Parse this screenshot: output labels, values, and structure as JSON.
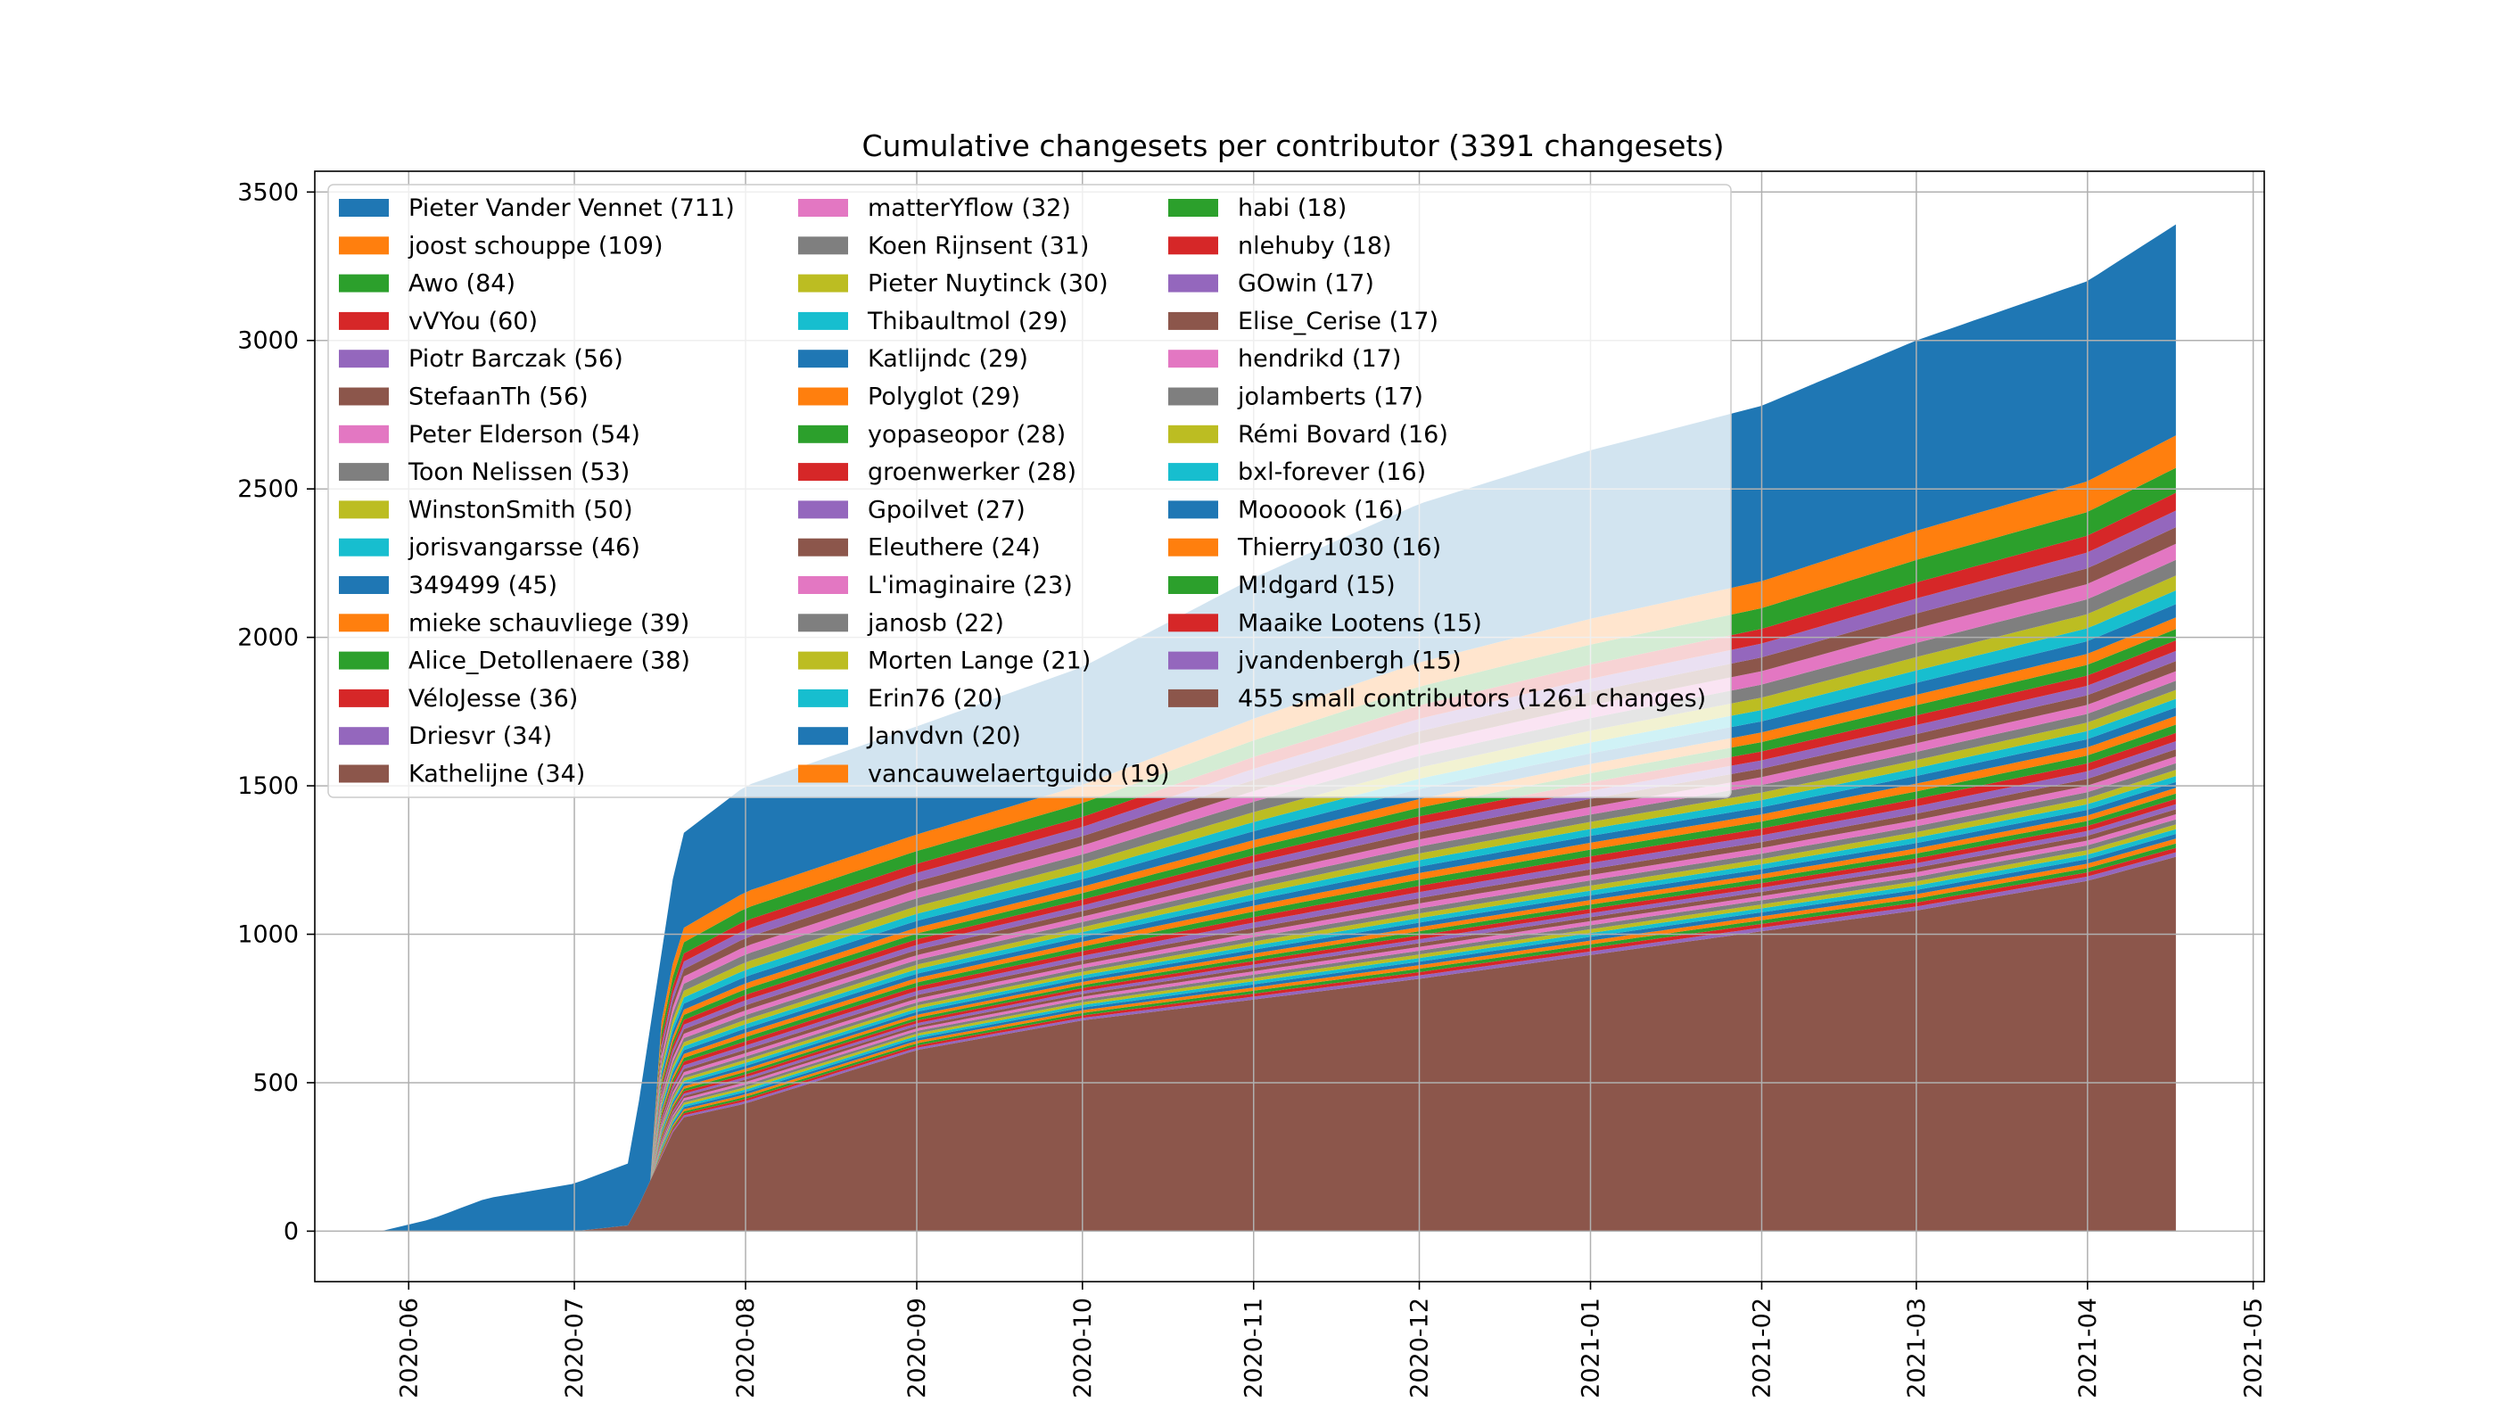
{
  "chart_data": {
    "type": "area",
    "stacked": true,
    "title": "Cumulative changesets per contributor (3391 changesets)",
    "xlabel": "",
    "ylabel": "",
    "x_ticks": [
      "2020-06",
      "2020-07",
      "2020-08",
      "2020-09",
      "2020-10",
      "2020-11",
      "2020-12",
      "2021-01",
      "2021-02",
      "2021-03",
      "2021-04",
      "2021-05"
    ],
    "x_range": [
      "2020-05-15",
      "2021-05-03"
    ],
    "y_ticks": [
      0,
      500,
      1000,
      1500,
      2000,
      2500,
      3000,
      3500
    ],
    "ylim": [
      -170,
      3570
    ],
    "grid": true,
    "legend_position": "top-left",
    "legend_columns": 3,
    "dates": [
      "2020-05-27",
      "2020-06-05",
      "2020-06-15",
      "2020-07-01",
      "2020-07-11",
      "2020-07-20",
      "2020-08-01",
      "2020-09-01",
      "2020-10-01",
      "2020-11-01",
      "2020-12-01",
      "2021-01-01",
      "2021-02-01",
      "2021-03-01",
      "2021-04-01",
      "2021-04-17"
    ],
    "totals": [
      0,
      40,
      110,
      160,
      230,
      1330,
      1500,
      1700,
      1900,
      2200,
      2450,
      2630,
      2780,
      3000,
      3200,
      3391
    ],
    "small_contributors_series": [
      0,
      0,
      0,
      0,
      20,
      380,
      430,
      610,
      710,
      780,
      850,
      930,
      1010,
      1080,
      1180,
      1261
    ],
    "series": [
      {
        "name": "Pieter Vander Vennet (711)",
        "final": 711
      },
      {
        "name": "joost schouppe (109)",
        "final": 109
      },
      {
        "name": "Awo (84)",
        "final": 84
      },
      {
        "name": "vVYou (60)",
        "final": 60
      },
      {
        "name": "Piotr Barczak (56)",
        "final": 56
      },
      {
        "name": "StefaanTh (56)",
        "final": 56
      },
      {
        "name": "Peter Elderson (54)",
        "final": 54
      },
      {
        "name": "Toon Nelissen (53)",
        "final": 53
      },
      {
        "name": "WinstonSmith (50)",
        "final": 50
      },
      {
        "name": "jorisvangarsse (46)",
        "final": 46
      },
      {
        "name": "349499 (45)",
        "final": 45
      },
      {
        "name": "mieke schauvliege (39)",
        "final": 39
      },
      {
        "name": "Alice_Detollenaere (38)",
        "final": 38
      },
      {
        "name": "VéloJesse (36)",
        "final": 36
      },
      {
        "name": "Driesvr (34)",
        "final": 34
      },
      {
        "name": "Kathelijne (34)",
        "final": 34
      },
      {
        "name": "matterYflow (32)",
        "final": 32
      },
      {
        "name": "Koen Rijnsent (31)",
        "final": 31
      },
      {
        "name": "Pieter Nuytinck (30)",
        "final": 30
      },
      {
        "name": "Thibaultmol (29)",
        "final": 29
      },
      {
        "name": "Katlijndc (29)",
        "final": 29
      },
      {
        "name": "Polyglot (29)",
        "final": 29
      },
      {
        "name": "yopaseopor (28)",
        "final": 28
      },
      {
        "name": "groenwerker (28)",
        "final": 28
      },
      {
        "name": "Gpoilvet (27)",
        "final": 27
      },
      {
        "name": "Eleuthere (24)",
        "final": 24
      },
      {
        "name": "L'imaginaire (23)",
        "final": 23
      },
      {
        "name": "janosb (22)",
        "final": 22
      },
      {
        "name": "Morten Lange (21)",
        "final": 21
      },
      {
        "name": "Erin76 (20)",
        "final": 20
      },
      {
        "name": "Janvdvn (20)",
        "final": 20
      },
      {
        "name": "vancauwelaertguido (19)",
        "final": 19
      },
      {
        "name": "habi (18)",
        "final": 18
      },
      {
        "name": "nlehuby (18)",
        "final": 18
      },
      {
        "name": "GOwin (17)",
        "final": 17
      },
      {
        "name": "Elise_Cerise (17)",
        "final": 17
      },
      {
        "name": "hendrikd (17)",
        "final": 17
      },
      {
        "name": "jolamberts (17)",
        "final": 17
      },
      {
        "name": "Rémi Bovard (16)",
        "final": 16
      },
      {
        "name": "bxl-forever (16)",
        "final": 16
      },
      {
        "name": "Moooook (16)",
        "final": 16
      },
      {
        "name": "Thierry1030 (16)",
        "final": 16
      },
      {
        "name": "M!dgard (15)",
        "final": 15
      },
      {
        "name": "Maaike Lootens (15)",
        "final": 15
      },
      {
        "name": "jvandenbergh (15)",
        "final": 15
      },
      {
        "name": "455 small contributors (1261 changes)",
        "final": 1261
      }
    ],
    "colors": [
      "#1f77b4",
      "#ff7f0e",
      "#2ca02c",
      "#d62728",
      "#9467bd",
      "#8c564b",
      "#e377c2",
      "#7f7f7f",
      "#bcbd22",
      "#17becf"
    ]
  }
}
